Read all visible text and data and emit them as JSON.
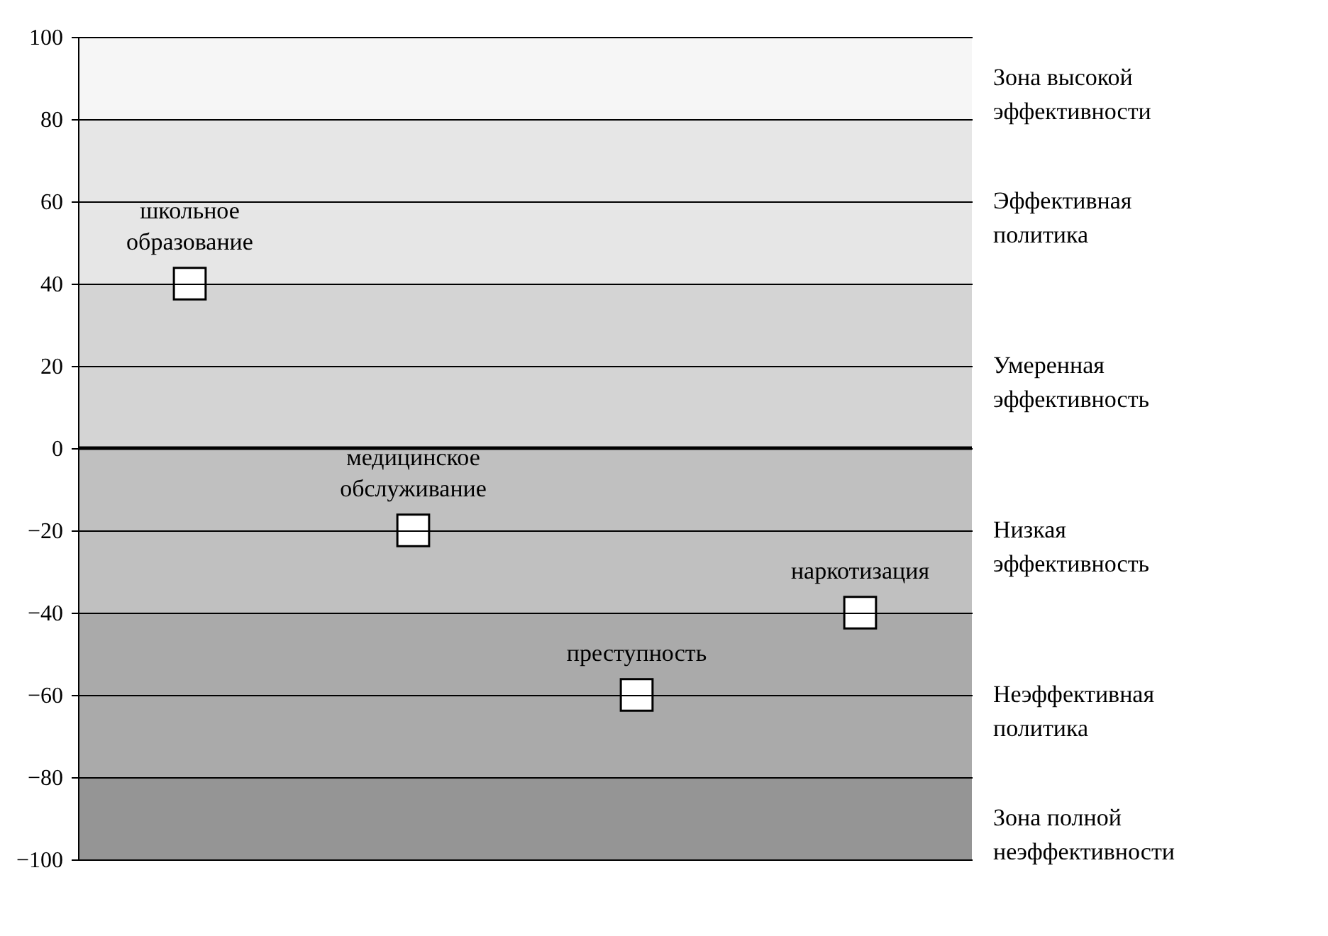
{
  "chart_data": {
    "type": "scatter",
    "categories": [
      null,
      null,
      null,
      null
    ],
    "series": [
      {
        "name": "школьное образование",
        "color": "#ffffff",
        "values": [
          40,
          null,
          null,
          null
        ]
      },
      {
        "name": "медицинское обслуживание",
        "color": "#ffffff",
        "values": [
          null,
          -20,
          null,
          null
        ]
      },
      {
        "name": "преступность",
        "color": "#ffffff",
        "values": [
          null,
          null,
          -60,
          null
        ]
      },
      {
        "name": "наркотизация",
        "color": "#ffffff",
        "values": [
          null,
          null,
          null,
          -40
        ]
      }
    ],
    "ylim": [
      -100,
      100
    ],
    "yticks": [
      -100,
      -80,
      -60,
      -40,
      -20,
      0,
      20,
      40,
      60,
      80,
      100
    ],
    "grid": "y",
    "marker": "square",
    "ref_lines": [
      {
        "axis": "y",
        "value": 0,
        "color": "#000000"
      }
    ],
    "bands": [
      {
        "axis": "y",
        "from": 80,
        "to": 100,
        "label": "Зона высокой эффективности",
        "color": "#f6f6f6"
      },
      {
        "axis": "y",
        "from": 40,
        "to": 80,
        "label": "Эффективная политика",
        "color": "#e6e6e6"
      },
      {
        "axis": "y",
        "from": 0,
        "to": 40,
        "label": "Умеренная эффективность",
        "color": "#d4d4d4"
      },
      {
        "axis": "y",
        "from": -40,
        "to": 0,
        "label": "Низкая эффективность",
        "color": "#c0c0c0"
      },
      {
        "axis": "y",
        "from": -80,
        "to": -40,
        "label": "Неэффективная политика",
        "color": "#aaaaaa"
      },
      {
        "axis": "y",
        "from": -100,
        "to": -80,
        "label": "Зона полной неэффективности",
        "color": "#959595"
      }
    ]
  }
}
